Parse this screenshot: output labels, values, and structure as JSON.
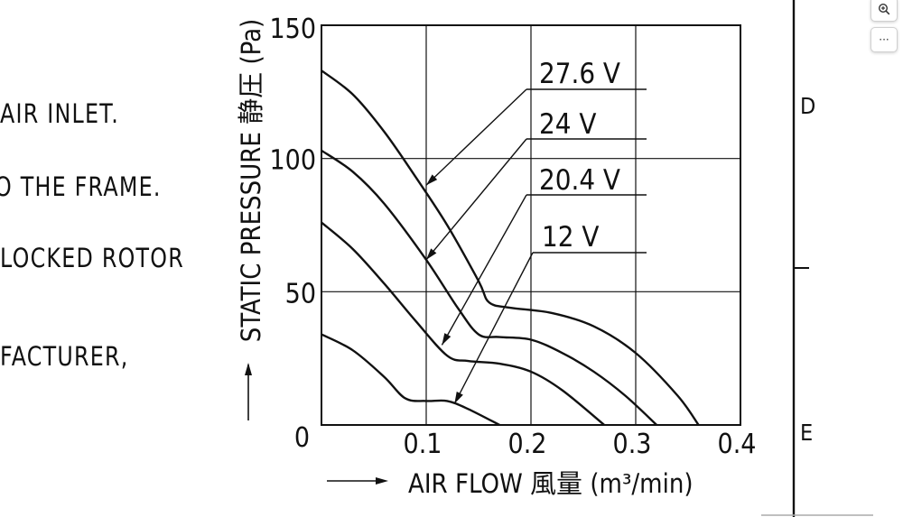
{
  "left_text": [
    "AIR  INLET.",
    "O  THE  FRAME.",
    "LOCKED  ROTOR",
    "FACTURER,"
  ],
  "right_letters": [
    "D",
    "E"
  ],
  "toolbar": {
    "zoom_icon": "magnify-plus-icon",
    "more_icon": "ellipsis-icon",
    "more_glyph": "···"
  },
  "chart_data": {
    "type": "line",
    "ylabel": "STATIC PRESSURE 静圧 (Pa)",
    "xlabel": "AIR FLOW 風量 (m³/min)",
    "xlim": [
      0,
      0.4
    ],
    "ylim": [
      0,
      150
    ],
    "xticks": [
      "0.1",
      "0.2",
      "0.3",
      "0.4"
    ],
    "yticks": [
      "0",
      "50",
      "100",
      "150"
    ],
    "grid": true,
    "series": [
      {
        "name": "27.6  V",
        "x": [
          0,
          0.03,
          0.06,
          0.09,
          0.12,
          0.15,
          0.16,
          0.18,
          0.22,
          0.26,
          0.3,
          0.34,
          0.36
        ],
        "y": [
          133,
          124,
          110,
          93,
          75,
          54,
          46,
          44,
          42,
          37,
          27,
          11,
          0
        ]
      },
      {
        "name": "24  V",
        "x": [
          0,
          0.03,
          0.06,
          0.1,
          0.13,
          0.15,
          0.17,
          0.2,
          0.23,
          0.26,
          0.29,
          0.32
        ],
        "y": [
          103,
          95,
          83,
          62,
          44,
          34,
          33,
          32,
          27,
          20,
          11,
          0
        ]
      },
      {
        "name": "20.4  V",
        "x": [
          0,
          0.03,
          0.06,
          0.09,
          0.12,
          0.14,
          0.17,
          0.2,
          0.23,
          0.27
        ],
        "y": [
          76,
          66,
          53,
          39,
          26,
          24,
          23,
          20,
          13,
          0
        ]
      },
      {
        "name": "12  V",
        "x": [
          0,
          0.03,
          0.06,
          0.08,
          0.1,
          0.12,
          0.14,
          0.17
        ],
        "y": [
          34,
          28,
          18,
          10,
          9,
          9,
          6,
          0
        ]
      }
    ],
    "annotations": [
      {
        "text": "27.6  V",
        "points_to": [
          0.1,
          90
        ]
      },
      {
        "text": "24  V",
        "points_to": [
          0.1,
          62
        ]
      },
      {
        "text": "20.4  V",
        "points_to": [
          0.115,
          30
        ]
      },
      {
        "text": "12  V",
        "points_to": [
          0.127,
          8
        ]
      }
    ]
  }
}
